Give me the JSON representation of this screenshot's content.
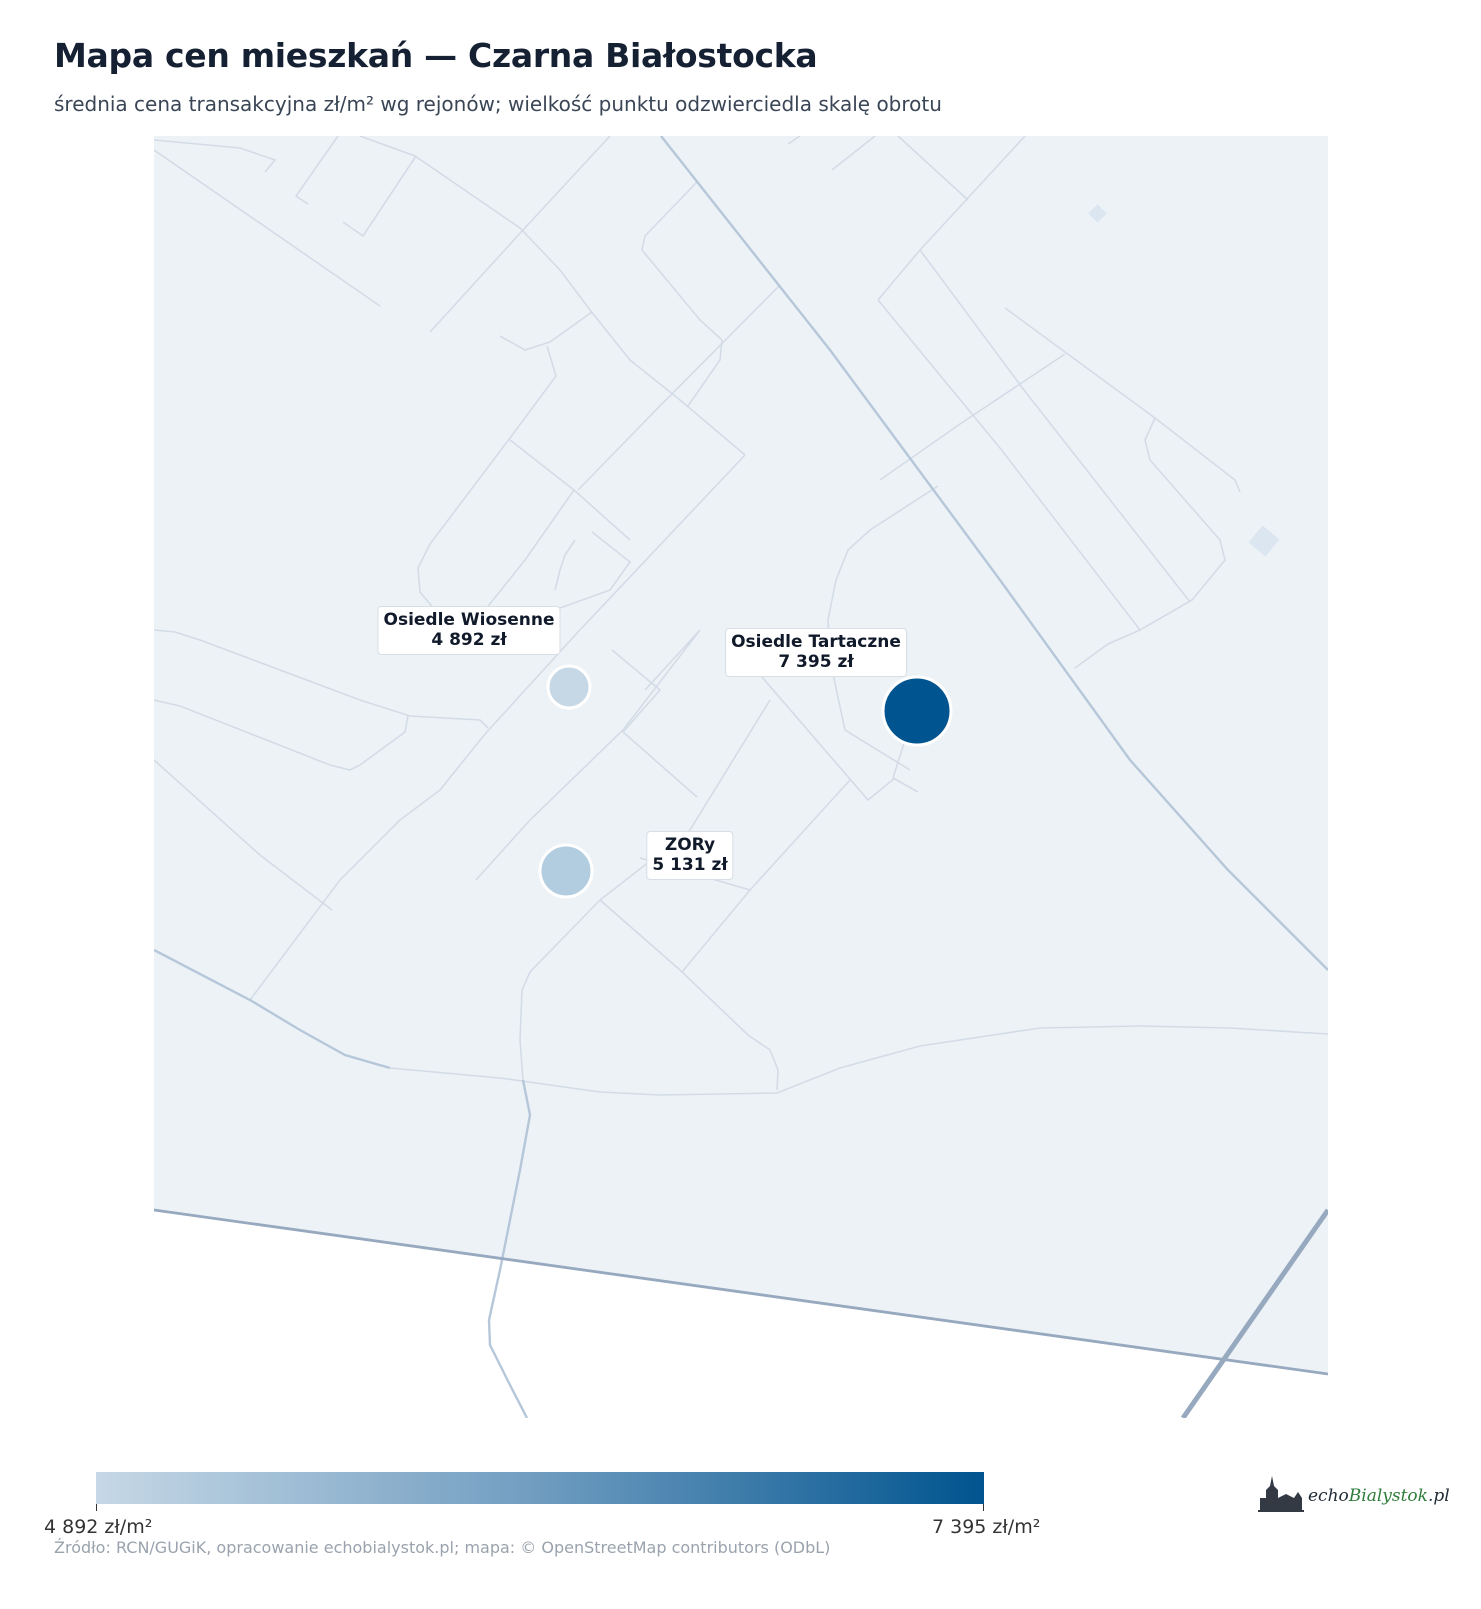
{
  "header": {
    "title": "Mapa cen mieszkań — Czarna Białostocka",
    "subtitle": "średnia cena transakcyjna zł/m² wg rejonów; wielkość punktu odzwierciedla skalę obrotu"
  },
  "areas": [
    {
      "name": "Osiedle Wiosenne",
      "price": "4 892 zł",
      "fill": "#c6d8e6"
    },
    {
      "name": "ZORy",
      "price": "5 131 zł",
      "fill": "#b3cde0"
    },
    {
      "name": "Osiedle Tartaczne",
      "price": "7 395 zł",
      "fill": "#00548f"
    }
  ],
  "legend": {
    "min_label": "4 892 zł/m²",
    "max_label": "7 395 zł/m²",
    "color_min": "#c6d8e6",
    "color_max": "#00548f"
  },
  "source": "Źródło: RCN/GUGiK, opracowanie echobialystok.pl; mapa: © OpenStreetMap contributors (ODbL)",
  "logo": {
    "text_echo": "echo",
    "text_city": "Bialystok",
    "text_tld": ".pl"
  },
  "colors": {
    "map_background": "#edf2f7",
    "street": "#d3dce6",
    "main_road": "#b5c7d9",
    "major_road": "#97a9bf"
  }
}
